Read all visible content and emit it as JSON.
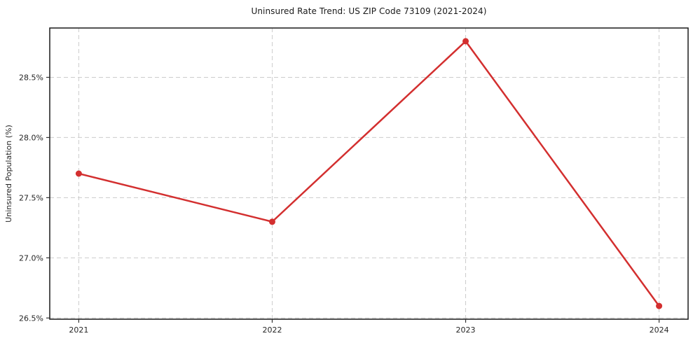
{
  "figure": {
    "background": "#ffffff"
  },
  "chart_data": {
    "type": "line",
    "title": "Uninsured Rate Trend: US ZIP Code 73109 (2021-2024)",
    "xlabel": "",
    "ylabel": "Uninsured Population (%)",
    "x": [
      2021,
      2022,
      2023,
      2024
    ],
    "series": [
      {
        "name": "Uninsured rate",
        "values": [
          27.7,
          27.3,
          28.8,
          26.6
        ]
      }
    ],
    "x_tick_labels": [
      "2021",
      "2022",
      "2023",
      "2024"
    ],
    "y_ticks": [
      26.5,
      27.0,
      27.5,
      28.0,
      28.5
    ],
    "y_tick_labels": [
      "26.5%",
      "27.0%",
      "27.5%",
      "28.0%",
      "28.5%"
    ],
    "xlim": [
      2020.85,
      2024.15
    ],
    "ylim": [
      26.49,
      28.91
    ],
    "grid": true,
    "grid_style": "dashed",
    "legend": false,
    "line_color": "#d32f2f",
    "marker": "circle",
    "marker_radius": 4.5,
    "line_width": 2.5,
    "grid_color": "#cccccc",
    "axis_color": "#1a1a1a",
    "tick_color": "#333333",
    "text_color": "#262626"
  }
}
